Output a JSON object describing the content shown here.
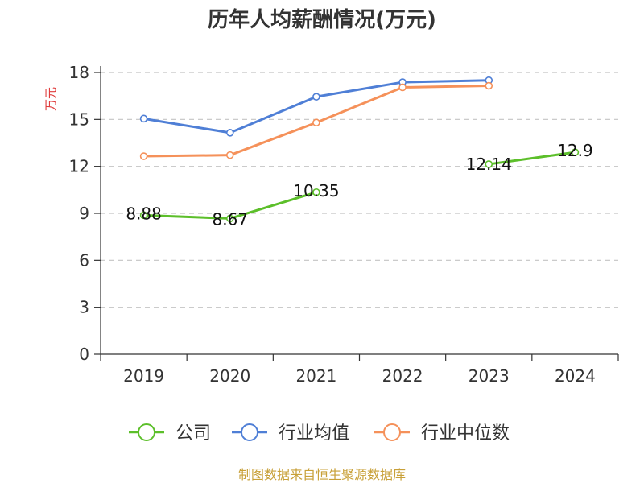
{
  "chart_data": {
    "type": "line",
    "title": "历年人均薪酬情况(万元)",
    "ylabel": "万元",
    "xlabel": "",
    "categories": [
      "2019",
      "2020",
      "2021",
      "2022",
      "2023",
      "2024"
    ],
    "ylim": [
      0,
      18
    ],
    "yticks": [
      0,
      3,
      6,
      9,
      12,
      15,
      18
    ],
    "grid": true,
    "legend_position": "bottom",
    "series": [
      {
        "name": "公司",
        "color": "#5cbf2a",
        "values": [
          8.88,
          8.67,
          10.35,
          null,
          12.14,
          12.9
        ],
        "labels": [
          "8.88",
          "8.67",
          "10.35",
          null,
          "12.14",
          "12.9"
        ]
      },
      {
        "name": "行业均值",
        "color": "#4f7fd6",
        "values": [
          15.05,
          14.15,
          16.45,
          17.38,
          17.5,
          null
        ]
      },
      {
        "name": "行业中位数",
        "color": "#f5915a",
        "values": [
          12.65,
          12.72,
          14.8,
          17.05,
          17.15,
          null
        ]
      }
    ]
  },
  "source": "制图数据来自恒生聚源数据库"
}
